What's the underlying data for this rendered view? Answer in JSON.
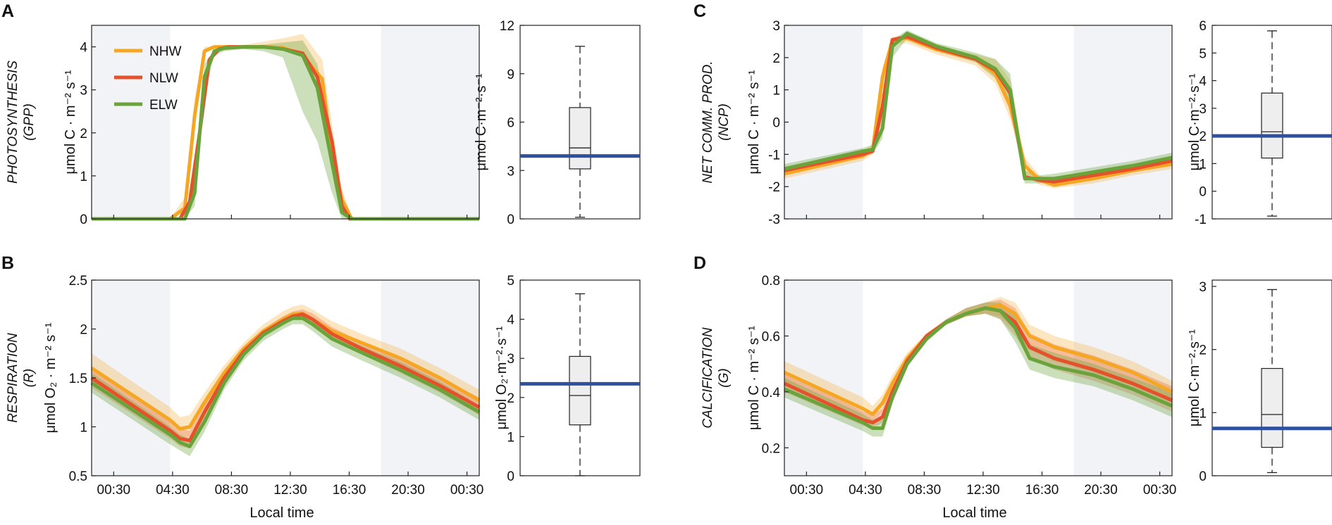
{
  "figure": {
    "time_axis_label": "Local time",
    "time_tick_labels": [
      "00:30",
      "04:30",
      "08:30",
      "12:30",
      "16:30",
      "20:30",
      "00:30"
    ],
    "legend": [
      "NHW",
      "NLW",
      "ELW"
    ]
  },
  "colors": {
    "NHW": "#f5a623",
    "NLW": "#e4512a",
    "ELW": "#6aa33a",
    "night_shade": "#f2f3f7",
    "mean_line": "#2f4f9f",
    "box_fill": "#eeeeee"
  },
  "chart_data": [
    {
      "id": "A",
      "type": "line",
      "letter": "A",
      "title_lines": [
        "PHOTOSYNTHESIS",
        "(GPP)"
      ],
      "ylabel": "μmol C · m⁻² s⁻¹",
      "ylim": [
        0,
        4.5
      ],
      "yticks": [
        0,
        1,
        2,
        3,
        4
      ],
      "xlim": [
        -1.5,
        38
      ],
      "night": [
        [
          -1.5,
          6.5
        ],
        [
          28,
          38
        ]
      ],
      "show_time_axis": false,
      "show_legend": true,
      "series": [
        {
          "name": "NHW",
          "x": [
            -1.5,
            6.5,
            8,
            9,
            10,
            11,
            12,
            14,
            16,
            18,
            20,
            22,
            23,
            24,
            25,
            26,
            38
          ],
          "y": [
            0,
            0,
            0.25,
            2.4,
            3.9,
            4,
            4,
            4,
            4,
            3.98,
            3.8,
            3.25,
            1.5,
            0.45,
            0,
            0,
            0
          ],
          "band_up": [
            0,
            0,
            0.5,
            2.8,
            4.0,
            4.02,
            4.02,
            4.05,
            4.12,
            4.2,
            4.3,
            3.7,
            2.2,
            0.7,
            0.05,
            0,
            0
          ]
        },
        {
          "name": "NLW",
          "x": [
            -1.5,
            7.5,
            8.5,
            9.5,
            10.5,
            11.5,
            12.5,
            14,
            16,
            18,
            20,
            21.5,
            23,
            24,
            24.8,
            38
          ],
          "y": [
            0,
            0,
            0.4,
            2.0,
            3.7,
            3.95,
            4,
            4,
            4,
            3.95,
            3.85,
            3.3,
            1.8,
            0.3,
            0,
            0
          ]
        },
        {
          "name": "ELW",
          "x": [
            -1.5,
            8,
            9,
            10,
            11,
            12,
            14,
            16,
            18,
            20,
            21.5,
            23,
            24,
            25,
            38
          ],
          "y": [
            0,
            0,
            0.6,
            3.3,
            3.9,
            3.97,
            4.0,
            4.0,
            3.95,
            3.8,
            3.05,
            1.3,
            0.15,
            0,
            0
          ],
          "band_lo": [
            0,
            0,
            0.3,
            2.9,
            3.8,
            3.9,
            3.95,
            3.9,
            3.75,
            2.5,
            1.8,
            0.6,
            0,
            0,
            0
          ],
          "band_up": [
            0,
            0,
            0.9,
            3.6,
            3.95,
            4.0,
            4.02,
            4.05,
            4.1,
            4.15,
            3.6,
            2.0,
            0.5,
            0.02,
            0
          ]
        }
      ],
      "box": {
        "ylim": [
          0,
          12
        ],
        "yticks": [
          0,
          3,
          6,
          9,
          12
        ],
        "ylabel": "μmol C·m⁻²·s⁻¹",
        "min": 0.1,
        "q1": 3.1,
        "median": 4.4,
        "q3": 6.9,
        "max": 10.7,
        "mean_line": 3.9
      }
    },
    {
      "id": "B",
      "type": "line",
      "letter": "B",
      "title_lines": [
        "RESPIRATION",
        "(R)"
      ],
      "ylabel": "μmol O₂ · m⁻² s⁻¹",
      "ylim": [
        0.5,
        2.5
      ],
      "yticks": [
        0.5,
        1,
        1.5,
        2,
        2.5
      ],
      "xlim": [
        -1.5,
        38
      ],
      "night": [
        [
          -1.5,
          6.5
        ],
        [
          28,
          38
        ]
      ],
      "show_time_axis": true,
      "show_legend": false,
      "series": [
        {
          "name": "NHW",
          "x": [
            -1.5,
            6.5,
            7.5,
            8.5,
            10,
            12,
            14,
            16,
            18,
            19,
            20,
            21,
            23,
            26,
            30,
            34,
            38
          ],
          "y": [
            1.6,
            1.07,
            0.98,
            1.0,
            1.25,
            1.55,
            1.8,
            1.98,
            2.1,
            2.15,
            2.16,
            2.1,
            1.98,
            1.86,
            1.7,
            1.5,
            1.27
          ],
          "band_lo": [
            1.45,
            0.95,
            0.88,
            0.9,
            1.15,
            1.48,
            1.75,
            1.93,
            2.05,
            2.1,
            2.12,
            2.06,
            1.92,
            1.78,
            1.6,
            1.4,
            1.16
          ],
          "band_up": [
            1.75,
            1.2,
            1.1,
            1.12,
            1.35,
            1.63,
            1.86,
            2.05,
            2.18,
            2.23,
            2.25,
            2.2,
            2.08,
            1.95,
            1.8,
            1.6,
            1.38
          ]
        },
        {
          "name": "NLW",
          "x": [
            -1.5,
            6.5,
            7.5,
            8.5,
            10,
            12,
            14,
            16,
            18,
            19,
            20,
            21,
            23,
            26,
            30,
            34,
            38
          ],
          "y": [
            1.5,
            0.96,
            0.88,
            0.86,
            1.15,
            1.5,
            1.77,
            1.96,
            2.08,
            2.13,
            2.15,
            2.1,
            1.95,
            1.8,
            1.62,
            1.42,
            1.2
          ],
          "band_lo": [
            1.4,
            0.88,
            0.8,
            0.78,
            1.08,
            1.44,
            1.72,
            1.92,
            2.04,
            2.09,
            2.11,
            2.06,
            1.9,
            1.74,
            1.55,
            1.35,
            1.12
          ],
          "band_up": [
            1.62,
            1.06,
            0.98,
            0.96,
            1.22,
            1.57,
            1.82,
            2.0,
            2.13,
            2.18,
            2.2,
            2.16,
            2.02,
            1.87,
            1.7,
            1.5,
            1.3
          ]
        },
        {
          "name": "ELW",
          "x": [
            -1.5,
            6.5,
            7.5,
            8.5,
            10,
            12,
            14,
            16,
            18,
            19,
            20,
            21,
            23,
            26,
            30,
            34,
            38
          ],
          "y": [
            1.45,
            0.92,
            0.84,
            0.8,
            1.05,
            1.45,
            1.74,
            1.94,
            2.06,
            2.11,
            2.11,
            2.05,
            1.9,
            1.76,
            1.58,
            1.38,
            1.15
          ],
          "band_lo": [
            1.35,
            0.82,
            0.76,
            0.7,
            0.95,
            1.38,
            1.68,
            1.88,
            2.0,
            2.05,
            2.05,
            1.98,
            1.82,
            1.68,
            1.5,
            1.3,
            1.07
          ],
          "band_up": [
            1.55,
            1.0,
            0.92,
            0.88,
            1.12,
            1.52,
            1.8,
            1.99,
            2.1,
            2.15,
            2.16,
            2.1,
            1.96,
            1.83,
            1.66,
            1.46,
            1.22
          ]
        }
      ],
      "box": {
        "ylim": [
          0,
          5
        ],
        "yticks": [
          0,
          1,
          2,
          3,
          4,
          5
        ],
        "ylabel": "μmol O₂·m⁻²·s⁻¹",
        "min": 0.0,
        "q1": 1.3,
        "median": 2.05,
        "q3": 3.05,
        "max": 4.65,
        "mean_line": 2.35
      }
    },
    {
      "id": "C",
      "type": "line",
      "letter": "C",
      "title_lines": [
        "NET COMM. PROD.",
        "(NCP)"
      ],
      "ylabel": "μmol C · m⁻² s⁻¹",
      "ylim": [
        -3,
        3
      ],
      "yticks": [
        -3,
        -2,
        -1,
        0,
        1,
        2,
        3
      ],
      "xlim": [
        -1.5,
        38
      ],
      "night": [
        [
          -1.5,
          6.5
        ],
        [
          28,
          38
        ]
      ],
      "show_time_axis": false,
      "show_legend": false,
      "series": [
        {
          "name": "NHW",
          "x": [
            -1.5,
            6.5,
            7.5,
            8.5,
            9.5,
            11,
            14,
            18,
            20,
            21.5,
            23,
            24.5,
            26,
            30,
            34,
            38
          ],
          "y": [
            -1.6,
            -1.05,
            -0.85,
            1.4,
            2.55,
            2.6,
            2.25,
            1.95,
            1.5,
            0.5,
            -1.35,
            -1.8,
            -1.95,
            -1.75,
            -1.5,
            -1.3
          ],
          "band_lo": [
            -1.75,
            -1.2,
            -1.0,
            1.0,
            2.4,
            2.45,
            2.1,
            1.75,
            1.2,
            0.1,
            -1.6,
            -1.95,
            -2.05,
            -1.9,
            -1.65,
            -1.45
          ],
          "band_up": [
            -1.45,
            -0.9,
            -0.7,
            1.7,
            2.65,
            2.7,
            2.35,
            2.1,
            1.95,
            1.3,
            -1.1,
            -1.65,
            -1.8,
            -1.6,
            -1.35,
            -1.15
          ]
        },
        {
          "name": "NLW",
          "x": [
            -1.5,
            6.5,
            7.5,
            8.5,
            9.5,
            11,
            14,
            18,
            20,
            21.5,
            23,
            24.5,
            26,
            30,
            34,
            38
          ],
          "y": [
            -1.5,
            -1.0,
            -0.9,
            0.5,
            2.55,
            2.65,
            2.3,
            1.95,
            1.6,
            0.9,
            -1.7,
            -1.8,
            -1.85,
            -1.65,
            -1.45,
            -1.2
          ]
        },
        {
          "name": "ELW",
          "x": [
            -1.5,
            6.5,
            7.5,
            8.5,
            9.5,
            11,
            14,
            18,
            20,
            21.5,
            23,
            24.5,
            26,
            30,
            34,
            38
          ],
          "y": [
            -1.45,
            -0.9,
            -0.85,
            -0.2,
            2.35,
            2.75,
            2.35,
            2.0,
            1.65,
            1.0,
            -1.75,
            -1.75,
            -1.75,
            -1.55,
            -1.35,
            -1.1
          ],
          "band_lo": [
            -1.6,
            -1.05,
            -1.0,
            -0.5,
            2.0,
            2.6,
            2.2,
            1.85,
            1.35,
            0.4,
            -1.9,
            -1.9,
            -1.85,
            -1.7,
            -1.5,
            -1.25
          ],
          "band_up": [
            -1.3,
            -0.8,
            -0.7,
            0.2,
            2.55,
            2.85,
            2.45,
            2.15,
            1.95,
            1.5,
            -1.5,
            -1.65,
            -1.6,
            -1.4,
            -1.2,
            -0.95
          ]
        }
      ],
      "box": {
        "ylim": [
          -1,
          6
        ],
        "yticks": [
          -1,
          0,
          1,
          2,
          3,
          4,
          5,
          6
        ],
        "ylabel": "μmol C·m⁻²·s⁻¹",
        "min": -0.9,
        "q1": 1.2,
        "median": 2.15,
        "q3": 3.55,
        "max": 5.8,
        "mean_line": 2.0
      }
    },
    {
      "id": "D",
      "type": "line",
      "letter": "D",
      "title_lines": [
        "CALCIFICATION",
        "(G)"
      ],
      "ylabel": "μmol C · m⁻² s⁻¹",
      "ylim": [
        0.1,
        0.8
      ],
      "yticks": [
        0.2,
        0.4,
        0.6,
        0.8
      ],
      "xlim": [
        -1.5,
        38
      ],
      "night": [
        [
          -1.5,
          6.5
        ],
        [
          28,
          38
        ]
      ],
      "show_time_axis": true,
      "show_legend": false,
      "series": [
        {
          "name": "NHW",
          "x": [
            -1.5,
            6.5,
            7.5,
            8.5,
            9.5,
            11,
            13,
            15,
            17,
            19,
            20.5,
            22,
            23.5,
            26,
            30,
            34,
            38
          ],
          "y": [
            0.47,
            0.34,
            0.32,
            0.36,
            0.43,
            0.52,
            0.6,
            0.65,
            0.68,
            0.7,
            0.71,
            0.68,
            0.6,
            0.56,
            0.52,
            0.47,
            0.4
          ],
          "band_lo": [
            0.43,
            0.31,
            0.29,
            0.33,
            0.41,
            0.5,
            0.59,
            0.64,
            0.67,
            0.68,
            0.67,
            0.62,
            0.55,
            0.51,
            0.47,
            0.42,
            0.36
          ],
          "band_up": [
            0.51,
            0.38,
            0.35,
            0.39,
            0.46,
            0.54,
            0.61,
            0.66,
            0.7,
            0.72,
            0.74,
            0.72,
            0.64,
            0.6,
            0.56,
            0.51,
            0.44
          ]
        },
        {
          "name": "NLW",
          "x": [
            -1.5,
            6.5,
            7.5,
            8.5,
            9.5,
            11,
            13,
            15,
            17,
            19,
            20.5,
            22,
            23.5,
            26,
            30,
            34,
            38
          ],
          "y": [
            0.43,
            0.3,
            0.29,
            0.31,
            0.4,
            0.51,
            0.6,
            0.65,
            0.68,
            0.7,
            0.69,
            0.65,
            0.56,
            0.52,
            0.48,
            0.43,
            0.37
          ],
          "band_lo": [
            0.4,
            0.28,
            0.27,
            0.29,
            0.38,
            0.5,
            0.59,
            0.64,
            0.67,
            0.68,
            0.66,
            0.6,
            0.52,
            0.48,
            0.44,
            0.39,
            0.33
          ],
          "band_up": [
            0.47,
            0.33,
            0.32,
            0.34,
            0.43,
            0.53,
            0.61,
            0.66,
            0.7,
            0.72,
            0.73,
            0.7,
            0.61,
            0.57,
            0.53,
            0.48,
            0.42
          ]
        },
        {
          "name": "ELW",
          "x": [
            -1.5,
            6.5,
            7.5,
            8.5,
            9.5,
            11,
            13,
            15,
            17,
            19,
            20.5,
            22,
            23.5,
            26,
            30,
            34,
            38
          ],
          "y": [
            0.41,
            0.29,
            0.27,
            0.27,
            0.38,
            0.5,
            0.59,
            0.65,
            0.68,
            0.7,
            0.69,
            0.63,
            0.52,
            0.49,
            0.46,
            0.41,
            0.35
          ],
          "band_lo": [
            0.38,
            0.26,
            0.24,
            0.24,
            0.36,
            0.49,
            0.58,
            0.64,
            0.67,
            0.68,
            0.66,
            0.58,
            0.48,
            0.45,
            0.42,
            0.37,
            0.31
          ],
          "band_up": [
            0.45,
            0.32,
            0.3,
            0.31,
            0.41,
            0.52,
            0.6,
            0.66,
            0.7,
            0.72,
            0.72,
            0.67,
            0.57,
            0.54,
            0.5,
            0.45,
            0.4
          ]
        }
      ],
      "box": {
        "ylim": [
          0,
          3.1
        ],
        "yticks": [
          0,
          1,
          2,
          3
        ],
        "ylabel": "μmol C·m⁻²·s⁻¹",
        "min": 0.05,
        "q1": 0.45,
        "median": 0.97,
        "q3": 1.7,
        "max": 2.95,
        "mean_line": 0.75
      }
    }
  ]
}
